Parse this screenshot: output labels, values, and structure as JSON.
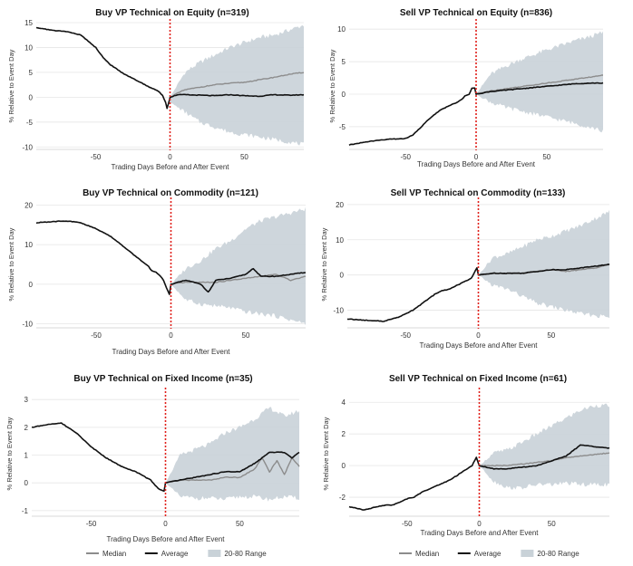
{
  "legend_rows": [
    {
      "items": [
        {
          "label": "Median",
          "kind": "line",
          "color": "#8c8c8c"
        },
        {
          "label": "Average",
          "kind": "line",
          "color": "#111111"
        },
        {
          "label": "20-80 Range",
          "kind": "band",
          "color": "#c9d2d8"
        }
      ]
    }
  ],
  "chart_data": [
    {
      "type": "line",
      "title": "Buy VP Technical on Equity (n=319)",
      "xlabel": "Trading Days Before and After Event",
      "ylabel": "% Relative to Event Day",
      "xlim": [
        -90,
        90
      ],
      "ylim": [
        -10.5,
        15
      ],
      "xticks": [
        -50,
        0,
        50
      ],
      "yticks": [
        -10,
        -5,
        0,
        5,
        10,
        15
      ],
      "event_day": 0,
      "band_20_80": {
        "x": [
          0,
          10,
          20,
          30,
          40,
          50,
          60,
          70,
          80,
          90
        ],
        "low": [
          -1,
          -3,
          -5,
          -6,
          -7,
          -7.5,
          -8,
          -8.5,
          -9,
          -9.5
        ],
        "high": [
          0,
          5,
          7,
          8.5,
          10,
          11,
          12,
          12.5,
          13.5,
          14.5
        ]
      },
      "series": [
        {
          "name": "Median",
          "x": [
            0,
            5,
            10,
            20,
            30,
            40,
            50,
            60,
            70,
            80,
            90
          ],
          "values": [
            0,
            0.8,
            1.5,
            2,
            2.5,
            2.8,
            3,
            3.5,
            4,
            4.6,
            5
          ]
        },
        {
          "name": "Average",
          "x": [
            -90,
            -80,
            -70,
            -60,
            -50,
            -45,
            -40,
            -35,
            -30,
            -25,
            -20,
            -15,
            -10,
            -7,
            -5,
            -3,
            -2,
            0,
            5,
            10,
            20,
            30,
            40,
            50,
            60,
            70,
            80,
            90
          ],
          "values": [
            14,
            13.5,
            13.2,
            12.5,
            10,
            8,
            6.5,
            5.5,
            4.5,
            3.8,
            3,
            2.2,
            1.5,
            1,
            0.3,
            -1,
            -2.3,
            0,
            0.5,
            0.5,
            0.4,
            0.3,
            0.5,
            0.3,
            0.2,
            0.5,
            0.4,
            0.5
          ]
        }
      ]
    },
    {
      "type": "line",
      "title": "Sell VP Technical on Equity (n=836)",
      "xlabel": "Trading Days Before and After Event",
      "ylabel": "% Relative to Event Day",
      "xlim": [
        -90,
        90
      ],
      "ylim": [
        -8.5,
        11
      ],
      "xticks": [
        -50,
        0,
        50
      ],
      "yticks": [
        -5,
        0,
        5,
        10
      ],
      "event_day": 0,
      "band_20_80": {
        "x": [
          0,
          10,
          20,
          30,
          40,
          50,
          60,
          70,
          80,
          90
        ],
        "low": [
          0,
          -1.2,
          -2,
          -2.5,
          -3,
          -3.5,
          -4,
          -4.5,
          -5,
          -5.7
        ],
        "high": [
          0,
          3,
          4.2,
          5.2,
          6,
          6.8,
          7.5,
          8.2,
          8.8,
          9.5
        ]
      },
      "series": [
        {
          "name": "Median",
          "x": [
            0,
            10,
            20,
            30,
            40,
            50,
            60,
            70,
            80,
            90
          ],
          "values": [
            0,
            0.5,
            0.8,
            1.1,
            1.4,
            1.7,
            2,
            2.3,
            2.6,
            2.9
          ]
        },
        {
          "name": "Average",
          "x": [
            -90,
            -80,
            -70,
            -60,
            -55,
            -50,
            -45,
            -40,
            -35,
            -30,
            -25,
            -20,
            -15,
            -10,
            -8,
            -5,
            -3,
            -1,
            0,
            10,
            20,
            30,
            40,
            50,
            60,
            70,
            80,
            90
          ],
          "values": [
            -7.8,
            -7.4,
            -7.1,
            -6.9,
            -6.9,
            -6.8,
            -6.3,
            -5.3,
            -4.1,
            -3.2,
            -2.4,
            -1.9,
            -1.4,
            -0.8,
            -0.3,
            0,
            0.9,
            0.9,
            0,
            0.4,
            0.6,
            0.8,
            1,
            1.2,
            1.4,
            1.6,
            1.7,
            1.7
          ]
        }
      ]
    },
    {
      "type": "line",
      "title": "Buy VP Technical on Commodity (n=121)",
      "xlabel": "Trading Days Before and After Event",
      "ylabel": "% Relative to Event Day",
      "xlim": [
        -90,
        90
      ],
      "ylim": [
        -11,
        21
      ],
      "xticks": [
        -50,
        0,
        50
      ],
      "yticks": [
        -10,
        0,
        10,
        20
      ],
      "event_day": 0,
      "band_20_80": {
        "x": [
          0,
          10,
          20,
          30,
          40,
          50,
          60,
          70,
          80,
          90
        ],
        "low": [
          0,
          -4,
          -5,
          -5.5,
          -6,
          -7,
          -7.5,
          -8,
          -9,
          -10
        ],
        "high": [
          0,
          4,
          6,
          9,
          11,
          14,
          16,
          17,
          18,
          19
        ]
      },
      "series": [
        {
          "name": "Median",
          "x": [
            0,
            10,
            20,
            30,
            40,
            50,
            60,
            70,
            80,
            90
          ],
          "values": [
            0,
            0.5,
            0.5,
            0.5,
            1,
            1.5,
            2,
            2.5,
            1,
            2
          ]
        },
        {
          "name": "Average",
          "x": [
            -90,
            -80,
            -70,
            -60,
            -50,
            -40,
            -30,
            -20,
            -15,
            -13,
            -10,
            -7,
            -5,
            -3,
            -1,
            0,
            10,
            15,
            20,
            25,
            30,
            40,
            50,
            55,
            60,
            70,
            80,
            90
          ],
          "values": [
            15.5,
            15.8,
            16,
            15.5,
            14,
            12,
            9,
            6,
            4.5,
            3.5,
            3,
            2,
            1,
            -1,
            -2.5,
            0,
            1,
            0.5,
            0,
            -2,
            1,
            1.5,
            2.5,
            4,
            2,
            2,
            2.5,
            3
          ]
        }
      ]
    },
    {
      "type": "line",
      "title": "Sell VP Technical on Commodity (n=133)",
      "xlabel": "Trading Days Before and After Event",
      "ylabel": "% Relative to Event Day",
      "xlim": [
        -90,
        90
      ],
      "ylim": [
        -15,
        21
      ],
      "xticks": [
        -50,
        0,
        50
      ],
      "yticks": [
        -10,
        0,
        10,
        20
      ],
      "event_day": 0,
      "band_20_80": {
        "x": [
          0,
          10,
          20,
          30,
          40,
          50,
          60,
          70,
          80,
          90
        ],
        "low": [
          0,
          -3,
          -4,
          -6,
          -8,
          -9,
          -10,
          -11,
          -11.5,
          -12
        ],
        "high": [
          0,
          5,
          6,
          8,
          10,
          11,
          12.5,
          14,
          16,
          18
        ]
      },
      "series": [
        {
          "name": "Median",
          "x": [
            0,
            10,
            20,
            30,
            40,
            50,
            60,
            70,
            80,
            90
          ],
          "values": [
            0,
            0.5,
            0.5,
            0.5,
            1,
            1.5,
            1,
            1.5,
            2,
            3
          ]
        },
        {
          "name": "Average",
          "x": [
            -90,
            -80,
            -70,
            -65,
            -60,
            -55,
            -50,
            -45,
            -40,
            -35,
            -30,
            -25,
            -20,
            -15,
            -10,
            -5,
            -3,
            -1,
            0,
            10,
            20,
            30,
            40,
            50,
            60,
            70,
            80,
            90
          ],
          "values": [
            -12.5,
            -12.8,
            -13,
            -13.2,
            -12.5,
            -12,
            -11,
            -10,
            -8.5,
            -7,
            -5.5,
            -4.5,
            -4,
            -3,
            -2,
            -1,
            0.5,
            2,
            0,
            0.5,
            0.5,
            0.5,
            1,
            1.5,
            1.5,
            2,
            2.5,
            3
          ]
        }
      ]
    },
    {
      "type": "line",
      "title": "Buy VP Technical on Fixed Income (n=35)",
      "xlabel": "Trading Days Before and After Event",
      "ylabel": "% Relative to Event Day",
      "xlim": [
        -90,
        90
      ],
      "ylim": [
        -1.2,
        3.3
      ],
      "xticks": [
        -50,
        0,
        50
      ],
      "yticks": [
        -1,
        0,
        1,
        2,
        3
      ],
      "event_day": 0,
      "band_20_80": {
        "x": [
          0,
          10,
          20,
          30,
          40,
          50,
          60,
          70,
          80,
          90
        ],
        "low": [
          0,
          -0.5,
          -0.55,
          -0.55,
          -0.6,
          -0.5,
          -0.5,
          -0.6,
          -0.5,
          -0.55
        ],
        "high": [
          0,
          1,
          1.2,
          1.4,
          1.8,
          2,
          2.3,
          2.7,
          2.4,
          2.6
        ]
      },
      "series": [
        {
          "name": "Median",
          "x": [
            0,
            10,
            20,
            30,
            40,
            50,
            60,
            65,
            70,
            75,
            80,
            85,
            90
          ],
          "values": [
            0,
            0.1,
            0.1,
            0.1,
            0.2,
            0.2,
            0.5,
            0.9,
            0.4,
            0.8,
            0.3,
            0.9,
            0.6
          ]
        },
        {
          "name": "Average",
          "x": [
            -90,
            -80,
            -70,
            -60,
            -50,
            -40,
            -30,
            -20,
            -10,
            -5,
            -1,
            0,
            10,
            20,
            30,
            40,
            50,
            60,
            70,
            80,
            85,
            90
          ],
          "values": [
            2,
            2.1,
            2.15,
            1.8,
            1.3,
            0.9,
            0.6,
            0.4,
            0.1,
            -0.2,
            -0.3,
            0,
            0.1,
            0.2,
            0.3,
            0.4,
            0.4,
            0.7,
            1.1,
            1.1,
            0.9,
            1.1
          ]
        }
      ]
    },
    {
      "type": "line",
      "title": "Sell VP Technical on Fixed Income (n=61)",
      "xlabel": "Trading Days Before and After Event",
      "ylabel": "% Relative to Event Day",
      "xlim": [
        -90,
        90
      ],
      "ylim": [
        -3.2,
        4.7
      ],
      "xticks": [
        -50,
        0,
        50
      ],
      "yticks": [
        -2,
        0,
        2,
        4
      ],
      "event_day": 0,
      "band_20_80": {
        "x": [
          0,
          10,
          20,
          30,
          40,
          50,
          60,
          70,
          80,
          90
        ],
        "low": [
          0,
          -1,
          -1.4,
          -1.4,
          -1.2,
          -1.2,
          -1.1,
          -1.2,
          -1.2,
          -1.2
        ],
        "high": [
          0,
          0.8,
          1,
          1.5,
          2,
          2.5,
          3,
          3.5,
          3.8,
          3.8
        ]
      },
      "series": [
        {
          "name": "Median",
          "x": [
            0,
            10,
            20,
            30,
            40,
            50,
            60,
            70,
            80,
            90
          ],
          "values": [
            0,
            0,
            0,
            0.1,
            0.2,
            0.3,
            0.5,
            0.6,
            0.7,
            0.8
          ]
        },
        {
          "name": "Average",
          "x": [
            -90,
            -80,
            -75,
            -70,
            -65,
            -60,
            -55,
            -50,
            -45,
            -40,
            -35,
            -30,
            -25,
            -20,
            -15,
            -10,
            -5,
            -2,
            0,
            10,
            20,
            30,
            40,
            50,
            60,
            70,
            80,
            90
          ],
          "values": [
            -2.6,
            -2.8,
            -2.7,
            -2.6,
            -2.5,
            -2.5,
            -2.3,
            -2.1,
            -2,
            -1.7,
            -1.5,
            -1.3,
            -1.1,
            -0.9,
            -0.6,
            -0.3,
            0,
            0.5,
            0,
            -0.2,
            -0.2,
            -0.1,
            0,
            0.3,
            0.6,
            1.3,
            1.2,
            1.1
          ]
        }
      ]
    }
  ]
}
